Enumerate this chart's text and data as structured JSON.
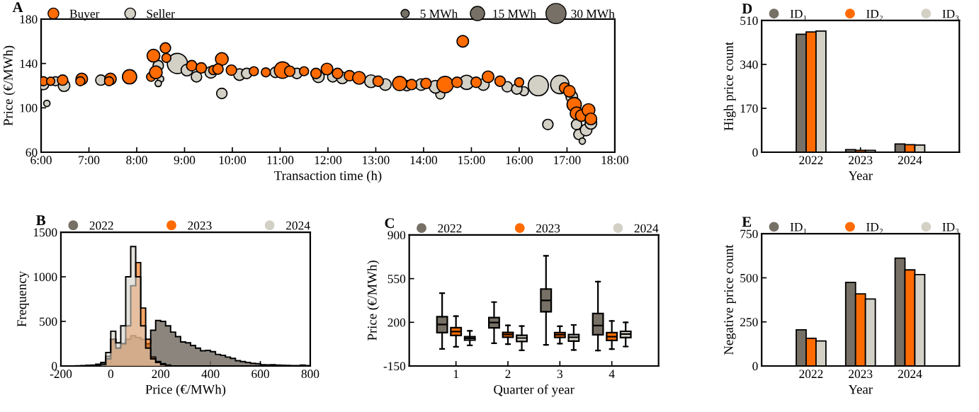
{
  "chart_data": [
    {
      "type": "bubble",
      "annotations": [
        "A"
      ],
      "xlabel": "Transaction time (h)",
      "ylabel": "Price (€/MWh)",
      "legend": "top",
      "xlim": [
        6,
        18
      ],
      "xticks": [
        {
          "value": 6,
          "label": "6:00"
        },
        {
          "value": 7,
          "label": "7:00"
        },
        {
          "value": 8,
          "label": "8:00"
        },
        {
          "value": 9,
          "label": "9:00"
        },
        {
          "value": 10,
          "label": "10:00"
        },
        {
          "value": 11,
          "label": "11:00"
        },
        {
          "value": 12,
          "label": "12:00"
        },
        {
          "value": 13,
          "label": "13:00"
        },
        {
          "value": 14,
          "label": "14:00"
        },
        {
          "value": 15,
          "label": "15:00"
        },
        {
          "value": 16,
          "label": "16:00"
        },
        {
          "value": 17,
          "label": "17:00"
        },
        {
          "value": 18,
          "label": "18:00"
        }
      ],
      "ylim": [
        60,
        180
      ],
      "yticks": [
        60,
        100,
        140,
        180
      ],
      "size_legend": [
        {
          "value": 5,
          "label": "5 MWh"
        },
        {
          "value": 15,
          "label": "15 MWh"
        },
        {
          "value": 30,
          "label": "30 MWh"
        }
      ],
      "series": [
        {
          "name": "Buyer",
          "color": "#ff6b00",
          "x": [
            6.05,
            6.2,
            6.45,
            6.85,
            6.82,
            7.45,
            7.42,
            7.85,
            8.3,
            8.35,
            8.4,
            8.6,
            8.62,
            9.15,
            9.35,
            9.6,
            9.78,
            9.7,
            9.98,
            10.45,
            10.7,
            11.05,
            11.2,
            11.5,
            11.75,
            11.98,
            12.2,
            12.45,
            12.65,
            13.05,
            13.5,
            13.75,
            14.05,
            14.45,
            14.82,
            14.7,
            15.35,
            15.1,
            15.6,
            16.0,
            16.95,
            17.05,
            17.15,
            17.2,
            17.3,
            17.45,
            17.5
          ],
          "values": [
            124,
            124,
            125,
            126,
            124,
            126,
            124,
            128,
            128,
            147,
            132,
            154,
            145,
            138,
            136,
            134,
            144,
            135,
            134,
            133,
            132,
            134,
            133,
            133,
            131,
            135,
            131,
            129,
            127,
            124,
            122,
            121,
            122,
            121,
            160,
            123,
            128,
            123,
            124,
            123,
            118,
            115,
            103,
            95,
            93,
            98,
            90
          ],
          "sizes": [
            6,
            5,
            8,
            10,
            6,
            10,
            6,
            15,
            6,
            12,
            12,
            8,
            6,
            8,
            8,
            6,
            12,
            8,
            8,
            6,
            6,
            20,
            8,
            6,
            8,
            10,
            8,
            8,
            12,
            8,
            15,
            8,
            8,
            20,
            10,
            8,
            10,
            8,
            8,
            6,
            8,
            10,
            15,
            12,
            10,
            12,
            10
          ]
        },
        {
          "name": "Seller",
          "color": "#d3d0c6",
          "x": [
            6.05,
            6.3,
            6.48,
            6.12,
            7.25,
            8.45,
            8.5,
            8.45,
            8.85,
            9.05,
            9.25,
            9.78,
            9.55,
            10.15,
            10.3,
            10.9,
            11.35,
            11.8,
            12.1,
            12.3,
            12.9,
            13.2,
            13.65,
            13.95,
            14.35,
            14.25,
            14.9,
            15.25,
            15.75,
            16.1,
            16.4,
            16.6,
            16.85,
            17.2,
            17.25,
            17.32,
            17.4,
            17.5,
            15.95,
            17.1
          ],
          "values": [
            121,
            124,
            120,
            104,
            125,
            138,
            126,
            122,
            140,
            134,
            128,
            113,
            132,
            130,
            131,
            132,
            131,
            128,
            128,
            127,
            124,
            121,
            120,
            121,
            112,
            119,
            123,
            121,
            119,
            115,
            120,
            85,
            121,
            85,
            76,
            70,
            80,
            86,
            117,
            110
          ],
          "sizes": [
            8,
            6,
            10,
            3,
            8,
            8,
            3,
            3,
            30,
            10,
            8,
            8,
            10,
            10,
            8,
            8,
            8,
            10,
            8,
            10,
            12,
            10,
            8,
            10,
            6,
            12,
            15,
            10,
            8,
            6,
            30,
            8,
            25,
            8,
            8,
            3,
            10,
            10,
            8,
            10
          ]
        }
      ]
    },
    {
      "type": "histogram",
      "annotations": [
        "B"
      ],
      "xlabel": "Price (€/MWh)",
      "ylabel": "Frequency",
      "legend": "top",
      "xlim": [
        -200,
        800
      ],
      "xticks": [
        -200,
        0,
        200,
        400,
        600,
        800
      ],
      "ylim": [
        0,
        1500
      ],
      "yticks": [
        0,
        500,
        1000,
        1500
      ],
      "bins": [
        -200,
        -180,
        -160,
        -140,
        -120,
        -100,
        -80,
        -60,
        -40,
        -20,
        0,
        20,
        40,
        60,
        80,
        100,
        120,
        140,
        160,
        180,
        200,
        220,
        240,
        260,
        280,
        300,
        320,
        340,
        360,
        380,
        400,
        420,
        440,
        460,
        480,
        500,
        520,
        540,
        560,
        580,
        600,
        620,
        640,
        660,
        680,
        700,
        720,
        740,
        760,
        780,
        800
      ],
      "series": [
        {
          "name": "2022",
          "color": "#777066",
          "values": [
            0,
            0,
            0,
            2,
            5,
            8,
            10,
            20,
            40,
            110,
            300,
            200,
            250,
            300,
            340,
            320,
            300,
            250,
            400,
            510,
            500,
            450,
            380,
            330,
            270,
            260,
            230,
            200,
            170,
            175,
            160,
            130,
            120,
            100,
            85,
            60,
            50,
            40,
            30,
            25,
            15,
            12,
            15,
            10,
            8,
            6,
            5,
            5,
            10,
            5
          ]
        },
        {
          "name": "2023",
          "color": "#ff6b00",
          "values": [
            0,
            0,
            0,
            0,
            0,
            0,
            2,
            5,
            10,
            80,
            300,
            200,
            250,
            450,
            900,
            1160,
            650,
            300,
            100,
            50,
            25,
            10,
            0,
            0,
            0,
            0,
            0,
            0,
            0,
            0,
            0,
            0,
            0,
            0,
            0,
            0,
            0,
            0,
            0,
            0,
            0,
            0,
            0,
            0,
            0,
            0,
            0,
            0,
            0,
            0
          ]
        },
        {
          "name": "2024",
          "color": "#d3d0c6",
          "values": [
            0,
            0,
            0,
            0,
            0,
            0,
            2,
            5,
            20,
            150,
            390,
            260,
            450,
            1000,
            1340,
            1000,
            450,
            200,
            80,
            40,
            15,
            5,
            0,
            0,
            0,
            0,
            0,
            0,
            0,
            0,
            0,
            0,
            0,
            0,
            0,
            0,
            0,
            0,
            0,
            0,
            0,
            0,
            0,
            0,
            0,
            0,
            0,
            0,
            0,
            0
          ]
        }
      ]
    },
    {
      "type": "box",
      "annotations": [
        "C"
      ],
      "xlabel": "Quarter of year",
      "ylabel": "Price (€/MWh)",
      "legend": "top",
      "categories": [
        "1",
        "2",
        "3",
        "4"
      ],
      "ylim": [
        -150,
        900
      ],
      "yticks": [
        -150,
        200,
        550,
        900
      ],
      "series": [
        {
          "name": "2022",
          "color": "#777066",
          "boxes": [
            {
              "low": -13,
              "q1": 117,
              "median": 183,
              "q3": 245,
              "high": 433
            },
            {
              "low": 32,
              "q1": 155,
              "median": 198,
              "q3": 238,
              "high": 362
            },
            {
              "low": 19,
              "q1": 285,
              "median": 375,
              "q3": 467,
              "high": 733
            },
            {
              "low": -26,
              "q1": 100,
              "median": 174,
              "q3": 271,
              "high": 526
            }
          ]
        },
        {
          "name": "2023",
          "color": "#ff6b00",
          "boxes": [
            {
              "low": 4,
              "q1": 95,
              "median": 126,
              "q3": 157,
              "high": 249
            },
            {
              "low": 25,
              "q1": 81,
              "median": 102,
              "q3": 119,
              "high": 175
            },
            {
              "low": 29,
              "q1": 79,
              "median": 100,
              "q3": 117,
              "high": 168
            },
            {
              "low": -15,
              "q1": 55,
              "median": 85,
              "q3": 117,
              "high": 211
            }
          ]
        },
        {
          "name": "2024",
          "color": "#d3d0c6",
          "boxes": [
            {
              "low": 15,
              "q1": 57,
              "median": 72,
              "q3": 85,
              "high": 132
            },
            {
              "low": -24,
              "q1": 47,
              "median": 74,
              "q3": 96,
              "high": 170
            },
            {
              "low": -22,
              "q1": 49,
              "median": 80,
              "q3": 102,
              "high": 179
            },
            {
              "low": 6,
              "q1": 78,
              "median": 106,
              "q3": 128,
              "high": 200
            }
          ]
        }
      ]
    },
    {
      "type": "bar",
      "annotations": [
        "D"
      ],
      "xlabel": "Year",
      "ylabel": "High price count",
      "legend": "top",
      "categories": [
        "2022",
        "2023",
        "2024"
      ],
      "ylim": [
        0,
        510
      ],
      "yticks": [
        0,
        170,
        340,
        510
      ],
      "series": [
        {
          "name": "ID₁",
          "color": "#777066",
          "values": [
            457,
            10,
            32
          ]
        },
        {
          "name": "ID₂",
          "color": "#ff6b00",
          "values": [
            466,
            7,
            29
          ]
        },
        {
          "name": "ID₃",
          "color": "#d3d0c6",
          "values": [
            469,
            7,
            28
          ]
        }
      ]
    },
    {
      "type": "bar",
      "annotations": [
        "E"
      ],
      "xlabel": "Year",
      "ylabel": "Negative price count",
      "legend": "top",
      "categories": [
        "2022",
        "2023",
        "2024"
      ],
      "ylim": [
        0,
        750
      ],
      "yticks": [
        0,
        250,
        500,
        750
      ],
      "series": [
        {
          "name": "ID₁",
          "color": "#777066",
          "values": [
            205,
            474,
            612
          ]
        },
        {
          "name": "ID₂",
          "color": "#ff6b00",
          "values": [
            157,
            409,
            545
          ]
        },
        {
          "name": "ID₃",
          "color": "#d3d0c6",
          "values": [
            142,
            380,
            518
          ]
        }
      ]
    }
  ]
}
